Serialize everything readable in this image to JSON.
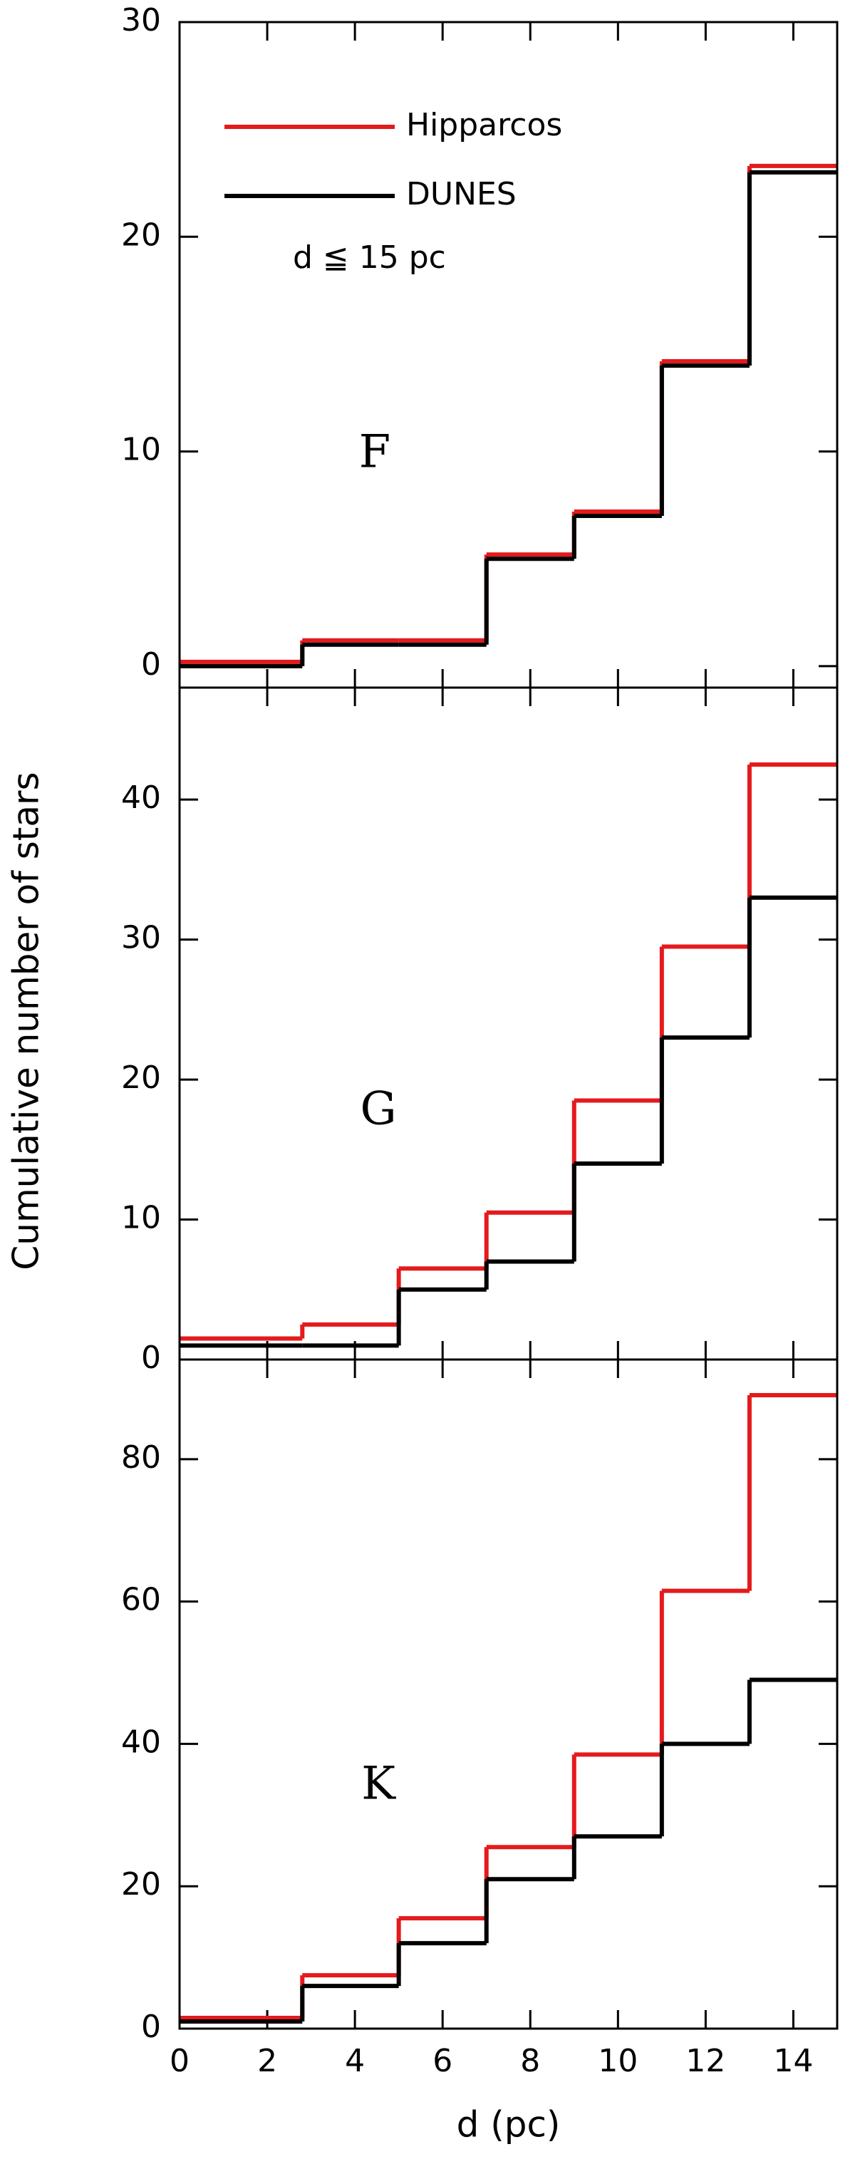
{
  "chart_data": [
    {
      "type": "step",
      "label": "F",
      "annotation": "d ≦ 15 pc",
      "legend": "upper left",
      "x": [
        0,
        2.8,
        5,
        7,
        9,
        11,
        13
      ],
      "xlim": [
        0,
        15
      ],
      "xticks": [
        0,
        2,
        4,
        6,
        8,
        10,
        12,
        14
      ],
      "ylim": [
        -1,
        30
      ],
      "yticks": [
        0,
        10,
        20,
        30
      ],
      "series": [
        {
          "name": "Hipparcos",
          "color": "#e41a1c",
          "values": [
            0.2,
            1.2,
            1.2,
            5.2,
            7.2,
            14.2,
            23.3
          ]
        },
        {
          "name": "DUNES",
          "color": "#000000",
          "values": [
            0,
            1,
            1,
            5,
            7,
            14,
            23
          ]
        }
      ]
    },
    {
      "type": "step",
      "label": "G",
      "ylabel": "Cumulative number of stars",
      "x": [
        0,
        2.8,
        5,
        7,
        9,
        11,
        13
      ],
      "xlim": [
        0,
        15
      ],
      "xticks": [
        0,
        2,
        4,
        6,
        8,
        10,
        12,
        14
      ],
      "ylim": [
        0,
        48
      ],
      "yticks": [
        0,
        10,
        20,
        30,
        40
      ],
      "series": [
        {
          "color": "#e41a1c",
          "values": [
            1.5,
            2.5,
            6.5,
            10.5,
            18.5,
            29.5,
            42.5
          ]
        },
        {
          "color": "#000000",
          "values": [
            1,
            1,
            5,
            7,
            14,
            23,
            33
          ]
        }
      ]
    },
    {
      "type": "step",
      "label": "K",
      "xlabel": "d (pc)",
      "x": [
        0,
        2.8,
        5,
        7,
        9,
        11,
        13
      ],
      "xlim": [
        0,
        15
      ],
      "xticks": [
        0,
        2,
        4,
        6,
        8,
        10,
        12,
        14
      ],
      "ylim": [
        0,
        94
      ],
      "yticks": [
        0,
        20,
        40,
        60,
        80
      ],
      "series": [
        {
          "color": "#e41a1c",
          "values": [
            1.5,
            7.5,
            15.5,
            25.5,
            38.5,
            61.5,
            89
          ]
        },
        {
          "color": "#000000",
          "values": [
            1,
            6,
            12,
            21,
            27,
            40,
            49
          ]
        }
      ]
    }
  ]
}
